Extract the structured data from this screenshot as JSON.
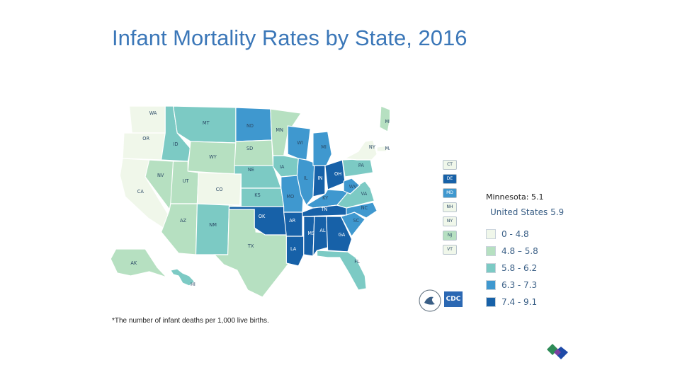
{
  "title": "Infant Mortality Rates by State, 2016",
  "footnote": "*The number of infant deaths per 1,000 live births.",
  "hover_readout": "Minnesota: 5.1",
  "us_rate": "United States 5.9",
  "legend": [
    {
      "label": "0 - 4.8",
      "color": "#f0f7ea"
    },
    {
      "label": "4.8 – 5.8",
      "color": "#b6e0c1"
    },
    {
      "label": "5.8 - 6.2",
      "color": "#7ccac4"
    },
    {
      "label": "6.3 - 7.3",
      "color": "#3f98cf"
    },
    {
      "label": "7.4 - 9.1",
      "color": "#1761a8"
    }
  ],
  "small_states": [
    {
      "abbr": "CT",
      "color": "#f0f7ea"
    },
    {
      "abbr": "DE",
      "color": "#1761a8"
    },
    {
      "abbr": "MD",
      "color": "#3f98cf"
    },
    {
      "abbr": "NH",
      "color": "#f0f7ea"
    },
    {
      "abbr": "NY",
      "color": "#f0f7ea"
    },
    {
      "abbr": "NJ",
      "color": "#b6e0c1"
    },
    {
      "abbr": "VT",
      "color": "#f0f7ea"
    }
  ],
  "states": [
    {
      "abbr": "WA",
      "bin": 0
    },
    {
      "abbr": "OR",
      "bin": 0
    },
    {
      "abbr": "CA",
      "bin": 0
    },
    {
      "abbr": "NV",
      "bin": 1
    },
    {
      "abbr": "ID",
      "bin": 2
    },
    {
      "abbr": "MT",
      "bin": 2
    },
    {
      "abbr": "WY",
      "bin": 1
    },
    {
      "abbr": "UT",
      "bin": 1
    },
    {
      "abbr": "CO",
      "bin": 0
    },
    {
      "abbr": "AZ",
      "bin": 1
    },
    {
      "abbr": "NM",
      "bin": 2
    },
    {
      "abbr": "TX",
      "bin": 1
    },
    {
      "abbr": "ND",
      "bin": 3
    },
    {
      "abbr": "SD",
      "bin": 1
    },
    {
      "abbr": "NE",
      "bin": 2
    },
    {
      "abbr": "KS",
      "bin": 2
    },
    {
      "abbr": "OK",
      "bin": 4
    },
    {
      "abbr": "MN",
      "bin": 1
    },
    {
      "abbr": "IA",
      "bin": 2
    },
    {
      "abbr": "MO",
      "bin": 3
    },
    {
      "abbr": "AR",
      "bin": 4
    },
    {
      "abbr": "LA",
      "bin": 4
    },
    {
      "abbr": "WI",
      "bin": 3
    },
    {
      "abbr": "IL",
      "bin": 3
    },
    {
      "abbr": "MI",
      "bin": 3
    },
    {
      "abbr": "IN",
      "bin": 4
    },
    {
      "abbr": "OH",
      "bin": 4
    },
    {
      "abbr": "KY",
      "bin": 3
    },
    {
      "abbr": "TN",
      "bin": 4
    },
    {
      "abbr": "MS",
      "bin": 4
    },
    {
      "abbr": "AL",
      "bin": 4
    },
    {
      "abbr": "GA",
      "bin": 4
    },
    {
      "abbr": "FL",
      "bin": 2
    },
    {
      "abbr": "SC",
      "bin": 3
    },
    {
      "abbr": "NC",
      "bin": 3
    },
    {
      "abbr": "VA",
      "bin": 2
    },
    {
      "abbr": "WV",
      "bin": 3
    },
    {
      "abbr": "PA",
      "bin": 2
    },
    {
      "abbr": "NY",
      "bin": 0
    },
    {
      "abbr": "ME",
      "bin": 1
    },
    {
      "abbr": "MA",
      "bin": 0
    },
    {
      "abbr": "AK",
      "bin": 1
    },
    {
      "abbr": "HI",
      "bin": 2
    }
  ]
}
